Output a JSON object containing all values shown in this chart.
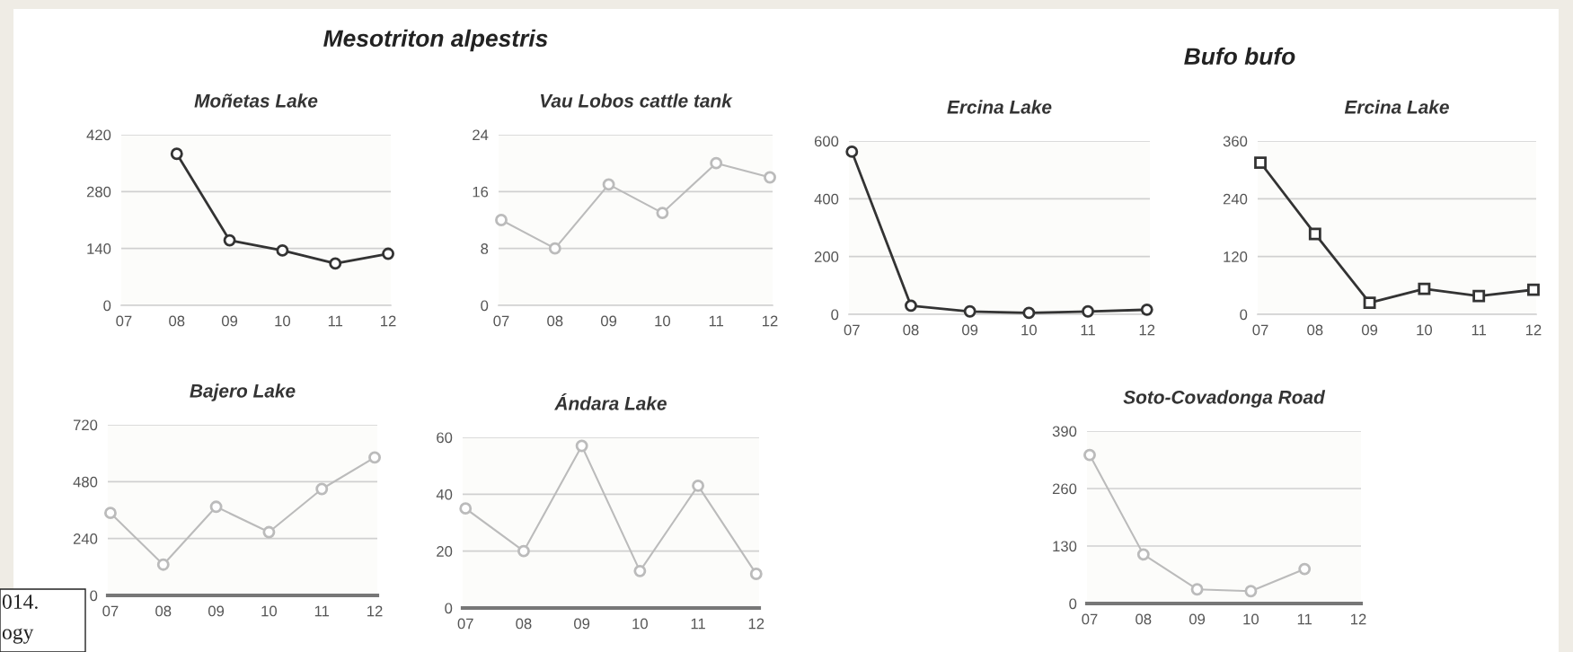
{
  "chart_data": [
    {
      "type": "line",
      "title": "Moñetas Lake",
      "annotations": [
        "Mesotriton alpestris"
      ],
      "categories": [
        "07",
        "08",
        "09",
        "10",
        "11",
        "12"
      ],
      "series": [
        {
          "color": "#333333",
          "values": [
            null,
            373,
            160,
            135,
            103,
            127
          ]
        }
      ],
      "ylim": [
        0,
        420
      ],
      "yticks": [
        0,
        140,
        280,
        420
      ],
      "grid": "y",
      "marker": "circle",
      "legend": false
    },
    {
      "type": "line",
      "title": "Vau Lobos cattle tank",
      "categories": [
        "07",
        "08",
        "09",
        "10",
        "11",
        "12"
      ],
      "series": [
        {
          "color": "#bbbbbb",
          "values": [
            12,
            8,
            17,
            13,
            20,
            18
          ]
        }
      ],
      "ylim": [
        0,
        24
      ],
      "yticks": [
        0,
        8,
        16,
        24
      ],
      "grid": "y",
      "marker": "circle",
      "legend": false
    },
    {
      "type": "line",
      "title": "Ercina Lake",
      "annotations": [
        "Bufo bufo"
      ],
      "categories": [
        "07",
        "08",
        "09",
        "10",
        "11",
        "12"
      ],
      "series": [
        {
          "color": "#333333",
          "values": [
            563,
            30,
            10,
            5,
            10,
            16
          ]
        }
      ],
      "ylim": [
        0,
        600
      ],
      "yticks": [
        0,
        200,
        400,
        600
      ],
      "grid": "y",
      "marker": "circle",
      "legend": false
    },
    {
      "type": "line",
      "title": "Ercina Lake",
      "categories": [
        "07",
        "08",
        "09",
        "10",
        "11",
        "12"
      ],
      "series": [
        {
          "color": "#333333",
          "values": [
            315,
            167,
            24,
            53,
            38,
            51
          ]
        }
      ],
      "ylim": [
        0,
        360
      ],
      "yticks": [
        0,
        120,
        240,
        360
      ],
      "grid": "y",
      "marker": "square",
      "legend": false
    },
    {
      "type": "line",
      "title": "Bajero Lake",
      "annotations": [
        "014.",
        "ogy"
      ],
      "categories": [
        "07",
        "08",
        "09",
        "10",
        "11",
        "12"
      ],
      "series": [
        {
          "color": "#bbbbbb",
          "values": [
            348,
            130,
            374,
            267,
            449,
            582
          ]
        }
      ],
      "ylim": [
        0,
        720
      ],
      "yticks": [
        0,
        240,
        480,
        720
      ],
      "grid": "y",
      "marker": "circle",
      "legend": false
    },
    {
      "type": "line",
      "title": "Ándara Lake",
      "categories": [
        "07",
        "08",
        "09",
        "10",
        "11",
        "12"
      ],
      "series": [
        {
          "color": "#bbbbbb",
          "values": [
            35,
            20,
            57,
            13,
            43,
            12
          ]
        }
      ],
      "ylim": [
        0,
        60
      ],
      "yticks": [
        0,
        20,
        40,
        60
      ],
      "grid": "y",
      "marker": "circle",
      "legend": false
    },
    {
      "type": "line",
      "title": "Soto-Covadonga Road",
      "categories": [
        "07",
        "08",
        "09",
        "10",
        "11",
        "12"
      ],
      "series": [
        {
          "color": "#bbbbbb",
          "values": [
            336,
            111,
            32,
            28,
            78,
            null
          ]
        }
      ],
      "ylim": [
        0,
        390
      ],
      "yticks": [
        0,
        130,
        260,
        390
      ],
      "grid": "y",
      "marker": "circle",
      "legend": false
    }
  ]
}
